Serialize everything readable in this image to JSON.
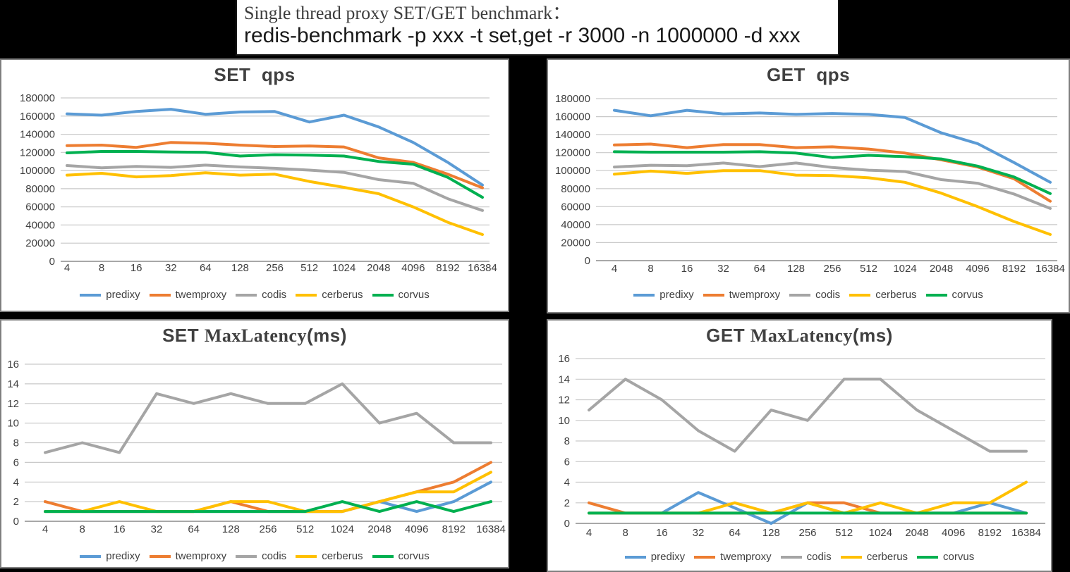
{
  "header": {
    "line1": "Single thread proxy SET/GET benchmark：",
    "line2": "redis-benchmark -p xxx -t set,get -r 3000 -n 1000000 -d xxx"
  },
  "legend_entries": [
    "predixy",
    "twemproxy",
    "codis",
    "cerberus",
    "corvus"
  ],
  "colors": {
    "predixy": "#5B9BD5",
    "twemproxy": "#ED7D31",
    "codis": "#A5A5A5",
    "cerberus": "#FFC000",
    "corvus": "#00B050",
    "gridline": "#C9C9C9",
    "axis_line": "#8C8C8C",
    "tick_text": "#404040",
    "title_text": "#404040"
  },
  "chart_data": [
    {
      "id": "set-qps",
      "type": "line",
      "title_parts": [
        {
          "text": "SET  qps",
          "style": "sans-bold"
        }
      ],
      "categories": [
        "4",
        "8",
        "16",
        "32",
        "64",
        "128",
        "256",
        "512",
        "1024",
        "2048",
        "4096",
        "8192",
        "16384"
      ],
      "xlabel": "",
      "ylabel": "",
      "ylim": [
        0,
        180000
      ],
      "ytick_step": 20000,
      "grid": true,
      "legend_position": "bottom",
      "series": [
        {
          "name": "predixy",
          "color": "#5B9BD5",
          "values": [
            162500,
            161000,
            165000,
            167500,
            162000,
            164500,
            165000,
            153500,
            161000,
            148000,
            131000,
            109000,
            84000
          ]
        },
        {
          "name": "twemproxy",
          "color": "#ED7D31",
          "values": [
            127500,
            128000,
            125500,
            131000,
            130000,
            128000,
            126500,
            127000,
            126000,
            114000,
            109000,
            96000,
            81000
          ]
        },
        {
          "name": "codis",
          "color": "#A5A5A5",
          "values": [
            105500,
            103000,
            104500,
            103500,
            106000,
            104000,
            102500,
            100500,
            98000,
            90000,
            86000,
            69000,
            56000
          ]
        },
        {
          "name": "cerberus",
          "color": "#FFC000",
          "values": [
            95000,
            97000,
            93000,
            94500,
            97500,
            95000,
            96000,
            88000,
            81500,
            74500,
            60000,
            43000,
            29500
          ]
        },
        {
          "name": "corvus",
          "color": "#00B050",
          "values": [
            119500,
            121000,
            121000,
            120500,
            120000,
            116000,
            117500,
            117000,
            116000,
            110000,
            107000,
            92500,
            70500
          ]
        }
      ]
    },
    {
      "id": "get-qps",
      "type": "line",
      "title_parts": [
        {
          "text": "GET  qps",
          "style": "sans-bold"
        }
      ],
      "categories": [
        "4",
        "8",
        "16",
        "32",
        "64",
        "128",
        "256",
        "512",
        "1024",
        "2048",
        "4096",
        "8192",
        "16384"
      ],
      "xlabel": "",
      "ylabel": "",
      "ylim": [
        0,
        180000
      ],
      "ytick_step": 20000,
      "grid": true,
      "legend_position": "bottom",
      "series": [
        {
          "name": "predixy",
          "color": "#5B9BD5",
          "values": [
            167000,
            161000,
            167000,
            163000,
            164000,
            162500,
            163500,
            162500,
            159000,
            142000,
            130000,
            109000,
            87000
          ]
        },
        {
          "name": "twemproxy",
          "color": "#ED7D31",
          "values": [
            128500,
            129500,
            125500,
            129000,
            129000,
            125500,
            126500,
            124000,
            119500,
            112000,
            104000,
            91000,
            66000
          ]
        },
        {
          "name": "codis",
          "color": "#A5A5A5",
          "values": [
            104000,
            106000,
            105500,
            108500,
            104500,
            108500,
            103500,
            100500,
            99000,
            90000,
            86000,
            74000,
            58000
          ]
        },
        {
          "name": "cerberus",
          "color": "#FFC000",
          "values": [
            96000,
            99500,
            97000,
            100000,
            100000,
            95000,
            94500,
            92000,
            87000,
            75000,
            60000,
            43500,
            29000
          ]
        },
        {
          "name": "corvus",
          "color": "#00B050",
          "values": [
            121000,
            120500,
            120500,
            120500,
            121000,
            119500,
            114500,
            117000,
            115500,
            113000,
            105000,
            93000,
            74500
          ]
        }
      ]
    },
    {
      "id": "set-maxlatency",
      "type": "line",
      "title_parts": [
        {
          "text": "SET ",
          "style": "sans-bold"
        },
        {
          "text": "MaxLatency",
          "style": "serif"
        },
        {
          "text": "(ms)",
          "style": "sans-bold"
        }
      ],
      "categories": [
        "4",
        "8",
        "16",
        "32",
        "64",
        "128",
        "256",
        "512",
        "1024",
        "2048",
        "4096",
        "8192",
        "16384"
      ],
      "xlabel": "",
      "ylabel": "",
      "ylim": [
        0,
        16
      ],
      "ytick_step": 2,
      "grid": true,
      "legend_position": "bottom",
      "series": [
        {
          "name": "predixy",
          "color": "#5B9BD5",
          "values": [
            1,
            1,
            1,
            1,
            1,
            1,
            1,
            1,
            1,
            2,
            1,
            2,
            4
          ]
        },
        {
          "name": "twemproxy",
          "color": "#ED7D31",
          "values": [
            2,
            1,
            1,
            1,
            1,
            2,
            1,
            1,
            1,
            2,
            3,
            4,
            6
          ]
        },
        {
          "name": "codis",
          "color": "#A5A5A5",
          "values": [
            7,
            8,
            7,
            13,
            12,
            13,
            12,
            12,
            14,
            10,
            11,
            8,
            8
          ]
        },
        {
          "name": "cerberus",
          "color": "#FFC000",
          "values": [
            1,
            1,
            2,
            1,
            1,
            2,
            2,
            1,
            1,
            2,
            3,
            3,
            5
          ]
        },
        {
          "name": "corvus",
          "color": "#00B050",
          "values": [
            1,
            1,
            1,
            1,
            1,
            1,
            1,
            1,
            2,
            1,
            2,
            1,
            2
          ]
        }
      ]
    },
    {
      "id": "get-maxlatency",
      "type": "line",
      "title_parts": [
        {
          "text": "GET ",
          "style": "sans-bold"
        },
        {
          "text": "MaxLatency",
          "style": "serif"
        },
        {
          "text": "(ms)",
          "style": "sans-bold"
        }
      ],
      "categories": [
        "4",
        "8",
        "16",
        "32",
        "64",
        "128",
        "256",
        "512",
        "1024",
        "2048",
        "4096",
        "8192",
        "16384"
      ],
      "xlabel": "",
      "ylabel": "",
      "ylim": [
        0,
        16
      ],
      "ytick_step": 2,
      "grid": true,
      "legend_position": "bottom",
      "series": [
        {
          "name": "predixy",
          "color": "#5B9BD5",
          "values": [
            1,
            1,
            1,
            3,
            1.5,
            0,
            2,
            1,
            1,
            1,
            1,
            2,
            1
          ]
        },
        {
          "name": "twemproxy",
          "color": "#ED7D31",
          "values": [
            2,
            1,
            1,
            1,
            1,
            1,
            2,
            2,
            1,
            1,
            1,
            1,
            1
          ]
        },
        {
          "name": "codis",
          "color": "#A5A5A5",
          "values": [
            11,
            14,
            12,
            9,
            7,
            11,
            10,
            14,
            14,
            11,
            9,
            7,
            7
          ]
        },
        {
          "name": "cerberus",
          "color": "#FFC000",
          "values": [
            1,
            1,
            1,
            1,
            2,
            1,
            2,
            1,
            2,
            1,
            2,
            2,
            4
          ]
        },
        {
          "name": "corvus",
          "color": "#00B050",
          "values": [
            1,
            1,
            1,
            1,
            1,
            1,
            1,
            1,
            1,
            1,
            1,
            1,
            1
          ]
        }
      ]
    }
  ]
}
